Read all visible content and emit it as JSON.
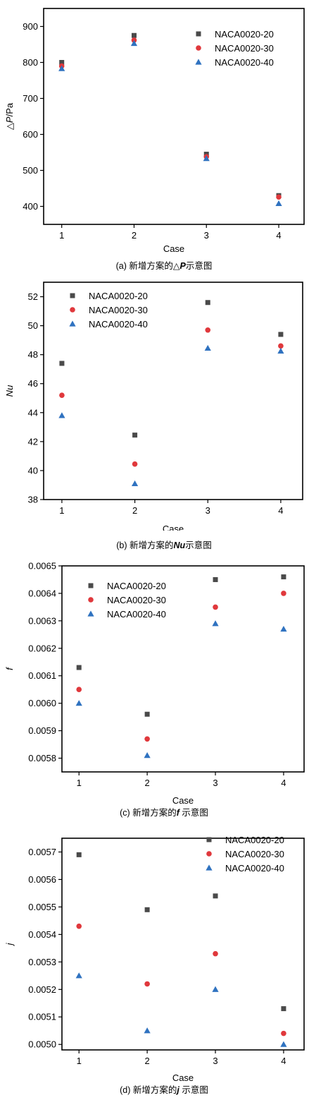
{
  "colors": {
    "s20": "#4a4a4a",
    "s30": "#e0383c",
    "s40": "#2f72c0"
  },
  "chart_data": [
    {
      "type": "scatter",
      "xlabel": "Case",
      "ylabel": "△P/Pa",
      "caption": {
        "prefix": "(a) 新增方案的",
        "var": "△P",
        "suffix": "示意图"
      },
      "x": [
        1,
        2,
        3,
        4
      ],
      "xlim": [
        0.75,
        4.35
      ],
      "ylim": [
        350,
        950
      ],
      "yticks": [
        400,
        500,
        600,
        700,
        800,
        900
      ],
      "ytick_labels": [
        "400",
        "500",
        "600",
        "700",
        "800",
        "900"
      ],
      "legend_pos": "top-right",
      "series": [
        {
          "name": "NACA0020-20",
          "marker": "square",
          "values": [
            800,
            875,
            545,
            430
          ]
        },
        {
          "name": "NACA0020-30",
          "marker": "circle",
          "values": [
            790,
            862,
            538,
            426
          ]
        },
        {
          "name": "NACA0020-40",
          "marker": "triangle",
          "values": [
            783,
            853,
            533,
            408
          ]
        }
      ]
    },
    {
      "type": "scatter",
      "xlabel": "Case",
      "ylabel": "Nu",
      "caption": {
        "prefix": "(b) 新增方案的",
        "var": "Nu",
        "suffix": "示意图"
      },
      "x": [
        1,
        2,
        3,
        4
      ],
      "xlim": [
        0.75,
        4.3
      ],
      "ylim": [
        38,
        53
      ],
      "yticks": [
        38,
        40,
        42,
        44,
        46,
        48,
        50,
        52
      ],
      "ytick_labels": [
        "38",
        "40",
        "42",
        "44",
        "46",
        "48",
        "50",
        "52"
      ],
      "legend_pos": "top-left",
      "series": [
        {
          "name": "NACA0020-20",
          "marker": "square",
          "values": [
            47.4,
            42.45,
            51.6,
            49.4
          ]
        },
        {
          "name": "NACA0020-30",
          "marker": "circle",
          "values": [
            45.2,
            40.45,
            49.7,
            48.6
          ]
        },
        {
          "name": "NACA0020-40",
          "marker": "triangle",
          "values": [
            43.8,
            39.1,
            48.45,
            48.25
          ]
        }
      ]
    },
    {
      "type": "scatter",
      "xlabel": "Case",
      "ylabel": "f",
      "caption": {
        "prefix": "(c) 新增方案的",
        "var": "f ",
        "suffix": "示意图"
      },
      "x": [
        1,
        2,
        3,
        4
      ],
      "xlim": [
        0.75,
        4.3
      ],
      "ylim": [
        0.00575,
        0.0065
      ],
      "yticks": [
        0.0058,
        0.0059,
        0.006,
        0.0061,
        0.0062,
        0.0063,
        0.0064,
        0.0065
      ],
      "ytick_labels": [
        "0.0058",
        "0.0059",
        "0.0060",
        "0.0061",
        "0.0062",
        "0.0063",
        "0.0064",
        "0.0065"
      ],
      "legend_pos": "top-left",
      "series": [
        {
          "name": "NACA0020-20",
          "marker": "square",
          "values": [
            0.00613,
            0.00596,
            0.00645,
            0.00646
          ]
        },
        {
          "name": "NACA0020-30",
          "marker": "circle",
          "values": [
            0.00605,
            0.00587,
            0.00635,
            0.0064
          ]
        },
        {
          "name": "NACA0020-40",
          "marker": "triangle",
          "values": [
            0.006,
            0.00581,
            0.00629,
            0.00627
          ]
        }
      ]
    },
    {
      "type": "scatter",
      "xlabel": "Case",
      "ylabel": "j",
      "caption": {
        "prefix": "(d) 新增方案的",
        "var": "j ",
        "suffix": "示意图"
      },
      "x": [
        1,
        2,
        3,
        4
      ],
      "xlim": [
        0.75,
        4.3
      ],
      "ylim": [
        0.00498,
        0.00575
      ],
      "yticks": [
        0.005,
        0.0051,
        0.0052,
        0.0053,
        0.0054,
        0.0055,
        0.0056,
        0.0057
      ],
      "ytick_labels": [
        "0.0050",
        "0.0051",
        "0.0052",
        "0.0053",
        "0.0054",
        "0.0055",
        "0.0056",
        "0.0057"
      ],
      "legend_pos": "top-right",
      "series": [
        {
          "name": "NACA0020-20",
          "marker": "square",
          "values": [
            0.00569,
            0.00549,
            0.00554,
            0.00513
          ]
        },
        {
          "name": "NACA0020-30",
          "marker": "circle",
          "values": [
            0.00543,
            0.00522,
            0.00533,
            0.00504
          ]
        },
        {
          "name": "NACA0020-40",
          "marker": "triangle",
          "values": [
            0.00525,
            0.00505,
            0.0052,
            0.005
          ]
        }
      ]
    }
  ]
}
